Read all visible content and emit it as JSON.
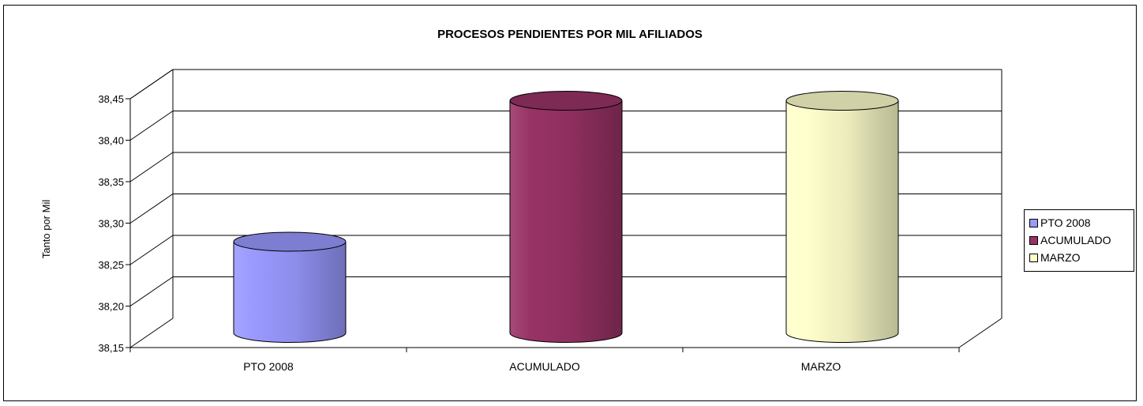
{
  "chart_data": {
    "type": "bar",
    "style": "3d-cylinder",
    "title": "PROCESOS PENDIENTES POR MIL AFILIADOS",
    "xlabel": "",
    "ylabel": "Tanto por Mil",
    "categories": [
      "PTO 2008",
      "ACUMULADO",
      "MARZO"
    ],
    "values": [
      38.26,
      38.43,
      38.43
    ],
    "ylim": [
      38.15,
      38.45
    ],
    "yticks": [
      "38,15",
      "38,20",
      "38,25",
      "38,30",
      "38,35",
      "38,40",
      "38,45"
    ],
    "grid": true,
    "legend": {
      "placement": "right",
      "entries": [
        "PTO 2008",
        "ACUMULADO",
        "MARZO"
      ]
    },
    "colors": [
      "#9999ff",
      "#993366",
      "#ffffcc"
    ]
  }
}
